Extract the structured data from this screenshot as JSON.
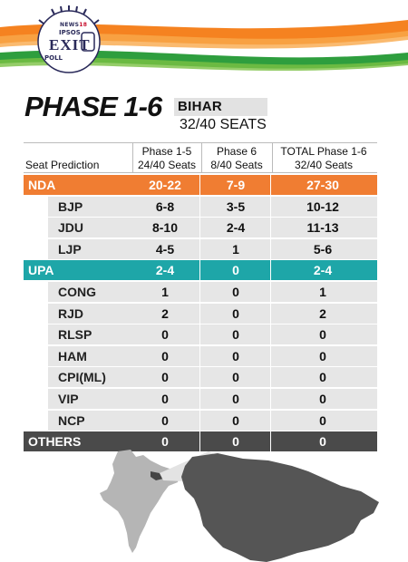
{
  "logo": {
    "news": "NEWS",
    "news_num": "18",
    "ipsos": "IPSOS",
    "exit": "EXIT",
    "poll": "POLL"
  },
  "heading": {
    "title": "PHASE 1-6",
    "state": "BIHAR",
    "seats": "32/40 SEATS"
  },
  "columns": {
    "seat_prediction": "Seat Prediction",
    "c1": {
      "name": "Phase 1-5",
      "seats": "24/40 Seats"
    },
    "c2": {
      "name": "Phase 6",
      "seats": "8/40 Seats"
    },
    "c3": {
      "name": "TOTAL Phase 1-6",
      "seats": "32/40 Seats"
    }
  },
  "rows": [
    {
      "kind": "group",
      "color": "#f07d32",
      "label": "NDA",
      "v1": "20-22",
      "v2": "7-9",
      "v3": "27-30"
    },
    {
      "kind": "sub",
      "label": "BJP",
      "v1": "6-8",
      "v2": "3-5",
      "v3": "10-12"
    },
    {
      "kind": "sub",
      "label": "JDU",
      "v1": "8-10",
      "v2": "2-4",
      "v3": "11-13"
    },
    {
      "kind": "sub",
      "label": "LJP",
      "v1": "4-5",
      "v2": "1",
      "v3": "5-6"
    },
    {
      "kind": "group",
      "color": "#1ea6a8",
      "label": "UPA",
      "v1": "2-4",
      "v2": "0",
      "v3": "2-4"
    },
    {
      "kind": "sub",
      "label": "CONG",
      "v1": "1",
      "v2": "0",
      "v3": "1"
    },
    {
      "kind": "sub",
      "label": "RJD",
      "v1": "2",
      "v2": "0",
      "v3": "2"
    },
    {
      "kind": "sub",
      "label": "RLSP",
      "v1": "0",
      "v2": "0",
      "v3": "0"
    },
    {
      "kind": "sub",
      "label": "HAM",
      "v1": "0",
      "v2": "0",
      "v3": "0"
    },
    {
      "kind": "sub",
      "label": "CPI(ML)",
      "v1": "0",
      "v2": "0",
      "v3": "0"
    },
    {
      "kind": "sub",
      "label": "VIP",
      "v1": "0",
      "v2": "0",
      "v3": "0"
    },
    {
      "kind": "sub",
      "label": "NCP",
      "v1": "0",
      "v2": "0",
      "v3": "0"
    },
    {
      "kind": "group",
      "color": "#4a4a4a",
      "label": "OTHERS",
      "v1": "0",
      "v2": "0",
      "v3": "0"
    }
  ],
  "colors": {
    "saffron": "#f58220",
    "green": "#2e9e3e",
    "map_india": "#b5b5b5",
    "map_bihar": "#555555"
  }
}
